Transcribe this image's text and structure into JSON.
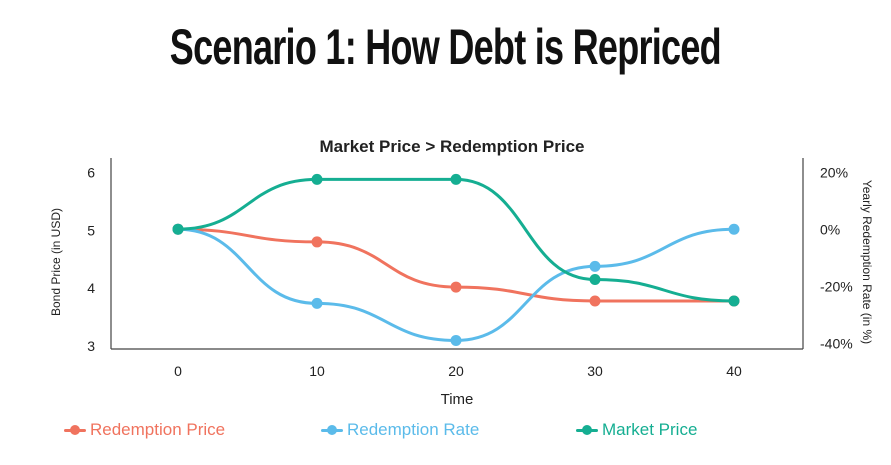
{
  "page": {
    "title": "Scenario 1: How Debt is Repriced"
  },
  "chart_data": {
    "type": "line",
    "title": "Market Price > Redemption Price",
    "xlabel": "Time",
    "ylabel_left": "Bond Price (in USD)",
    "ylabel_right": "Yearly Redemption Rate (in %)",
    "x": [
      0,
      10,
      20,
      30,
      40
    ],
    "x_ticks": [
      "0",
      "10",
      "20",
      "30",
      "40"
    ],
    "ylim_left": [
      2.95,
      6.25
    ],
    "y_ticks_left": [
      "3",
      "4",
      "5",
      "6"
    ],
    "ylim_right": [
      -42,
      25
    ],
    "y_ticks_right": [
      "20%",
      "0%",
      "-20%",
      "-40%"
    ],
    "grid": false,
    "legend_position": "bottom",
    "series": [
      {
        "name": "Redemption Price",
        "axis": "left",
        "color": "#f0735e",
        "values": [
          5.02,
          4.8,
          4.02,
          3.78,
          3.78
        ]
      },
      {
        "name": "Redemption Rate",
        "axis": "right",
        "color": "#5bbbea",
        "values": [
          0,
          -26,
          -39,
          -13,
          0
        ]
      },
      {
        "name": "Market Price",
        "axis": "left",
        "color": "#15ae92",
        "values": [
          5.02,
          5.88,
          5.88,
          4.15,
          3.78
        ]
      }
    ]
  }
}
